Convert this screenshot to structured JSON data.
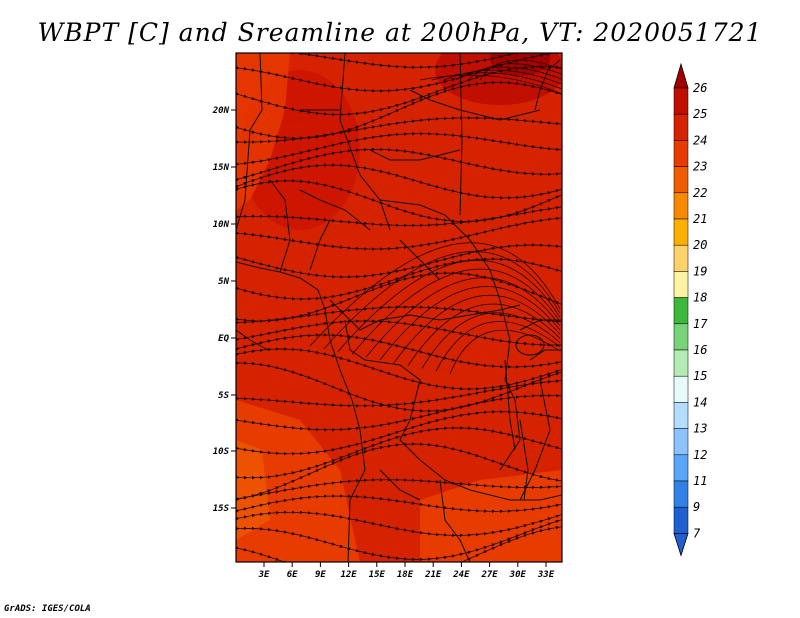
{
  "title": "WBPT [C] and Sreamline at 200hPa, VT: 2020051721",
  "credit": "GrADS: IGES/COLA",
  "lat_labels": [
    "20N",
    "15N",
    "10N",
    "5N",
    "EQ",
    "5S",
    "10S",
    "15S"
  ],
  "lon_labels": [
    "3E",
    "6E",
    "9E",
    "12E",
    "15E",
    "18E",
    "21E",
    "24E",
    "27E",
    "30E",
    "33E"
  ],
  "colorbar": {
    "labels": [
      "26",
      "25",
      "24",
      "23",
      "22",
      "21",
      "20",
      "19",
      "18",
      "17",
      "16",
      "15",
      "14",
      "13",
      "12",
      "11",
      "9",
      "7"
    ],
    "colors": [
      "#a50000",
      "#c00e00",
      "#d52200",
      "#e83b00",
      "#f05d00",
      "#f78a00",
      "#fbb000",
      "#fcd26a",
      "#fdf3a5",
      "#3cb93c",
      "#78d278",
      "#b4ebb4",
      "#e6fafa",
      "#b4dcff",
      "#8cc3ff",
      "#5aa5f5",
      "#3282e6",
      "#1f5fd2"
    ]
  },
  "field_colors": {
    "dominant": "#d52200",
    "north_hot": "#c00e00",
    "south_cool": "#e83b00"
  }
}
